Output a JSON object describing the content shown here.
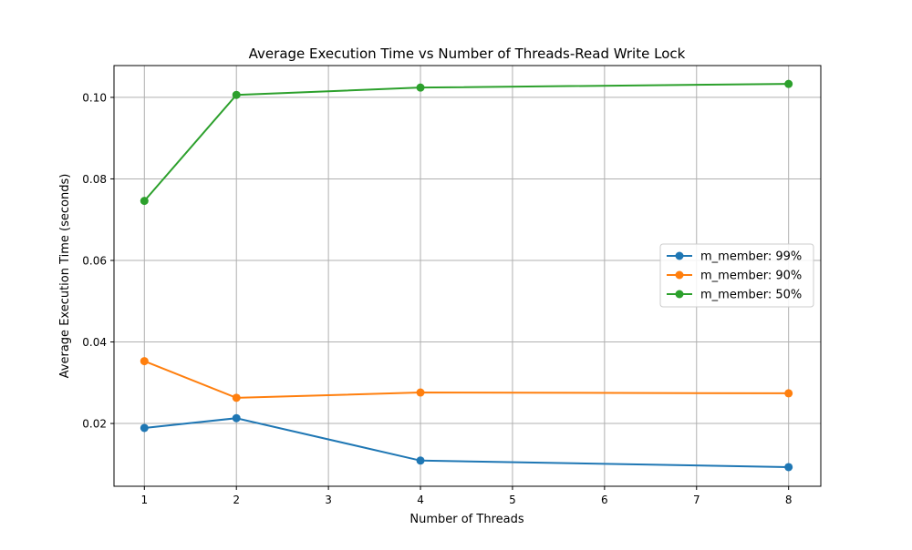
{
  "chart_data": {
    "type": "line",
    "title": "Average Execution Time vs Number of Threads-Read Write Lock",
    "xlabel": "Number of Threads",
    "ylabel": "Average Execution Time (seconds)",
    "xlim": [
      0.67,
      8.35
    ],
    "ylim": [
      0.0046,
      0.1078
    ],
    "x_ticks": [
      1,
      2,
      3,
      4,
      5,
      6,
      7,
      8
    ],
    "y_ticks": [
      0.02,
      0.04,
      0.06,
      0.08,
      0.1
    ],
    "y_tick_labels": [
      "0.02",
      "0.04",
      "0.06",
      "0.08",
      "0.10"
    ],
    "grid": true,
    "legend_position": "center-right",
    "x": [
      1,
      2,
      4,
      8
    ],
    "series": [
      {
        "name": "m_member: 99%",
        "color": "#1f77b4",
        "values": [
          0.0189,
          0.0213,
          0.0109,
          0.0093
        ]
      },
      {
        "name": "m_member: 90%",
        "color": "#ff7f0e",
        "values": [
          0.0353,
          0.0263,
          0.0276,
          0.0274
        ]
      },
      {
        "name": "m_member: 50%",
        "color": "#2ca02c",
        "values": [
          0.0746,
          0.1006,
          0.1024,
          0.1033
        ]
      }
    ]
  }
}
